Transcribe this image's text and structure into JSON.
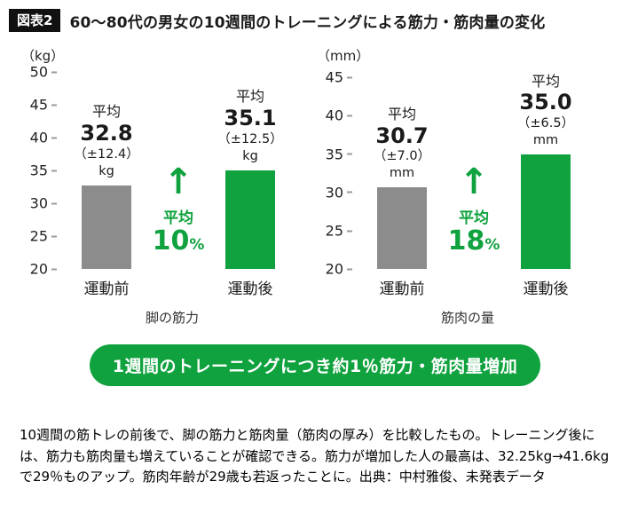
{
  "header": {
    "badge": "図表2",
    "title": "60〜80代の男女の10週間のトレーニングによる筋力・筋肉量の変化"
  },
  "chart_data": [
    {
      "type": "bar",
      "axis_unit": "（kg）",
      "ylim": [
        20,
        50
      ],
      "yticks": [
        50,
        45,
        40,
        35,
        30,
        25,
        20
      ],
      "caption": "脚の筋力",
      "bars": [
        {
          "category": "運動前",
          "value": 32.8,
          "label": "平均",
          "value_text": "32.8",
          "error_text": "（±12.4）",
          "unit": "kg"
        },
        {
          "category": "運動後",
          "value": 35.1,
          "label": "平均",
          "value_text": "35.1",
          "error_text": "（±12.5）",
          "unit": "kg"
        }
      ],
      "change": {
        "label": "平均",
        "value": "10",
        "unit": "%"
      }
    },
    {
      "type": "bar",
      "axis_unit": "（mm）",
      "ylim": [
        20,
        45
      ],
      "yticks": [
        45,
        40,
        35,
        30,
        25,
        20
      ],
      "caption": "筋肉の量",
      "bars": [
        {
          "category": "運動前",
          "value": 30.7,
          "label": "平均",
          "value_text": "30.7",
          "error_text": "（±7.0）",
          "unit": "mm"
        },
        {
          "category": "運動後",
          "value": 35.0,
          "label": "平均",
          "value_text": "35.0",
          "error_text": "（±6.5）",
          "unit": "mm"
        }
      ],
      "change": {
        "label": "平均",
        "value": "18",
        "unit": "%"
      }
    }
  ],
  "banner": {
    "text": "1週間のトレーニングにつき約1％筋力・筋肉量増加"
  },
  "footer": {
    "text": "10週間の筋トレの前後で、脚の筋力と筋肉量（筋肉の厚み）を比較したもの。トレーニング後には、筋力も筋肉量も増えていることが確認できる。筋力が増加した人の最高は、32.25kg→41.6kgで29％ものアップ。筋肉年齢が29歳も若返ったことに。出典：中村雅俊、未発表データ"
  },
  "colors": {
    "bar_gray": "#8c8c8c",
    "accent_green": "#0fa23e",
    "badge_black": "#111111"
  }
}
